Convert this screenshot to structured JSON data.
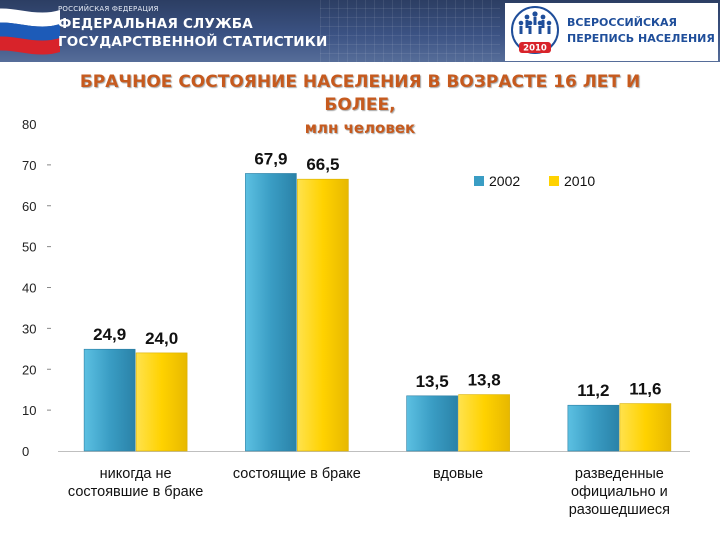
{
  "header": {
    "org_small": "РОССИЙСКАЯ ФЕДЕРАЦИЯ",
    "org_line1": "ФЕДЕРАЛЬНАЯ СЛУЖБА",
    "org_line2": "ГОСУДАРСТВЕННОЙ СТАТИСТИКИ",
    "census_line1": "ВСЕРОССИЙСКАЯ",
    "census_line2": "ПЕРЕПИСЬ НАСЕЛЕНИЯ",
    "census_year": "2010"
  },
  "title_lines": [
    "БРАЧНОЕ СОСТОЯНИЕ НАСЕЛЕНИЯ В ВОЗРАСТЕ 16 ЛЕТ И",
    "БОЛЕЕ,",
    "млн человек"
  ],
  "colors": {
    "series_2002": "#3a9dc4",
    "series_2010": "#ffd200",
    "title": "#c65a1e",
    "census_blue": "#1f4e9a",
    "header_bg": "#3b5283"
  },
  "chart_data": {
    "type": "bar",
    "title": "БРАЧНОЕ СОСТОЯНИЕ НАСЕЛЕНИЯ В ВОЗРАСТЕ 16 ЛЕТ И БОЛЕЕ, млн человек",
    "categories": [
      [
        "никогда не",
        "состоявшие в браке"
      ],
      [
        "состоящие в браке"
      ],
      [
        "вдовые"
      ],
      [
        "разведенные",
        "официально и",
        "разошедшиеся"
      ]
    ],
    "series": [
      {
        "name": "2002",
        "values": [
          24.9,
          67.9,
          13.5,
          11.2
        ],
        "labels": [
          "24,9",
          "67,9",
          "13,5",
          "11,2"
        ]
      },
      {
        "name": "2010",
        "values": [
          24.0,
          66.5,
          13.8,
          11.6
        ],
        "labels": [
          "24,0",
          "66,5",
          "13,8",
          "11,6"
        ]
      }
    ],
    "ylim": [
      0,
      80
    ],
    "yticks": [
      0,
      10,
      20,
      30,
      40,
      50,
      60,
      70,
      80
    ],
    "grid": false,
    "legend": "top-right",
    "xlabel": "",
    "ylabel": ""
  }
}
